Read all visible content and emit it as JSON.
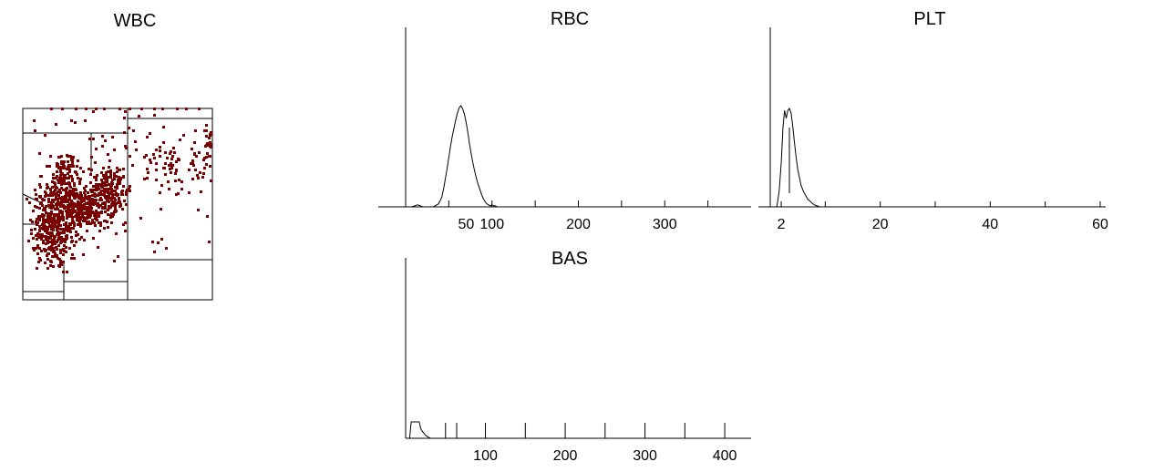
{
  "chart_data": [
    {
      "id": "wbc",
      "type": "scatter",
      "title": "WBC",
      "point_color": "#7a0000",
      "gate_color": "#000000"
    },
    {
      "id": "rbc",
      "type": "line",
      "title": "RBC",
      "xlim": [
        0,
        400
      ],
      "x_tick_labels": [
        "50",
        "100",
        "200",
        "300"
      ],
      "x_tick_values": [
        50,
        100,
        200,
        300
      ],
      "series": [
        {
          "x": [
            0,
            7,
            14,
            20,
            25,
            28,
            30,
            32,
            34,
            36,
            38,
            40,
            42,
            44,
            46,
            48,
            50,
            52,
            54,
            56,
            58,
            60,
            62,
            64,
            66,
            68,
            70,
            72,
            74,
            76,
            78,
            80,
            82,
            84,
            86,
            88,
            90,
            92,
            94,
            96,
            98,
            100,
            102,
            104,
            106,
            108,
            110
          ],
          "y": [
            0,
            0,
            0.02,
            0,
            0,
            0,
            0,
            0,
            0.01,
            0.02,
            0.03,
            0.06,
            0.1,
            0.18,
            0.28,
            0.38,
            0.49,
            0.6,
            0.7,
            0.78,
            0.86,
            0.93,
            0.98,
            1.0,
            0.97,
            0.92,
            0.84,
            0.74,
            0.62,
            0.52,
            0.43,
            0.35,
            0.28,
            0.22,
            0.17,
            0.12,
            0.08,
            0.05,
            0.03,
            0.02,
            0.01,
            0.02,
            0.01,
            0.01,
            0,
            0,
            0
          ]
        }
      ]
    },
    {
      "id": "plt",
      "type": "line",
      "title": "PLT",
      "xlim": [
        0,
        61
      ],
      "x_tick_labels": [
        "2",
        "20",
        "40",
        "60"
      ],
      "x_tick_values": [
        2,
        20,
        40,
        60
      ],
      "series": [
        {
          "x": [
            1.2,
            1.6,
            2.0,
            2.3,
            2.6,
            2.9,
            3.2,
            3.5,
            3.8,
            4.1,
            4.4,
            4.7,
            5.0,
            5.3,
            5.6,
            6.0,
            6.4,
            6.8,
            7.2,
            7.6,
            8.0,
            8.5,
            9.0
          ],
          "y": [
            0,
            0.15,
            0.45,
            0.8,
            0.98,
            0.9,
            0.98,
            1.0,
            0.95,
            0.82,
            0.66,
            0.5,
            0.38,
            0.3,
            0.22,
            0.16,
            0.12,
            0.08,
            0.06,
            0.04,
            0.02,
            0.01,
            0
          ]
        }
      ]
    },
    {
      "id": "bas",
      "type": "line",
      "title": "BAS",
      "xlim": [
        0,
        433
      ],
      "x_tick_labels": [
        "100",
        "200",
        "300",
        "400"
      ],
      "x_tick_values": [
        100,
        200,
        300,
        400
      ],
      "series": [
        {
          "x": [
            0,
            5,
            7,
            17,
            19,
            21,
            23,
            25,
            27,
            29,
            31
          ],
          "y": [
            0,
            0,
            1.0,
            1.0,
            0.58,
            0.42,
            0.3,
            0.18,
            0.12,
            0.05,
            0
          ]
        }
      ]
    }
  ]
}
